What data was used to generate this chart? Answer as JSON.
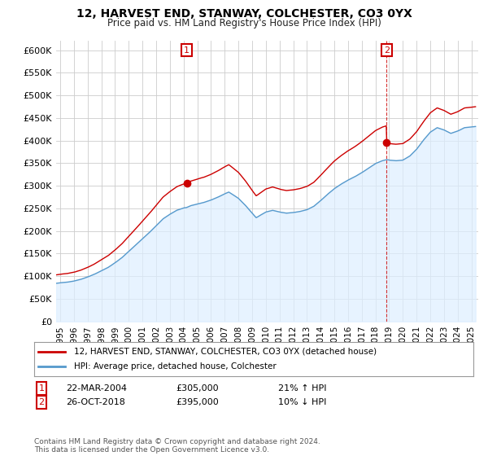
{
  "title": "12, HARVEST END, STANWAY, COLCHESTER, CO3 0YX",
  "subtitle": "Price paid vs. HM Land Registry's House Price Index (HPI)",
  "ylabel_ticks": [
    0,
    50000,
    100000,
    150000,
    200000,
    250000,
    300000,
    350000,
    400000,
    450000,
    500000,
    550000,
    600000
  ],
  "ylim": [
    0,
    620000
  ],
  "xlim_start": 1994.7,
  "xlim_end": 2025.5,
  "sale1_year": 2004.23,
  "sale1_price": 305000,
  "sale2_year": 2018.82,
  "sale2_price": 395000,
  "legend_line1": "12, HARVEST END, STANWAY, COLCHESTER, CO3 0YX (detached house)",
  "legend_line2": "HPI: Average price, detached house, Colchester",
  "note1_label": "1",
  "note1_date": "22-MAR-2004",
  "note1_price": "£305,000",
  "note1_hpi": "21% ↑ HPI",
  "note2_label": "2",
  "note2_date": "26-OCT-2018",
  "note2_price": "£395,000",
  "note2_hpi": "10% ↓ HPI",
  "footer": "Contains HM Land Registry data © Crown copyright and database right 2024.\nThis data is licensed under the Open Government Licence v3.0.",
  "red_color": "#cc0000",
  "blue_color": "#5599cc",
  "blue_fill_color": "#ddeeff",
  "background_color": "#ffffff",
  "grid_color": "#cccccc"
}
